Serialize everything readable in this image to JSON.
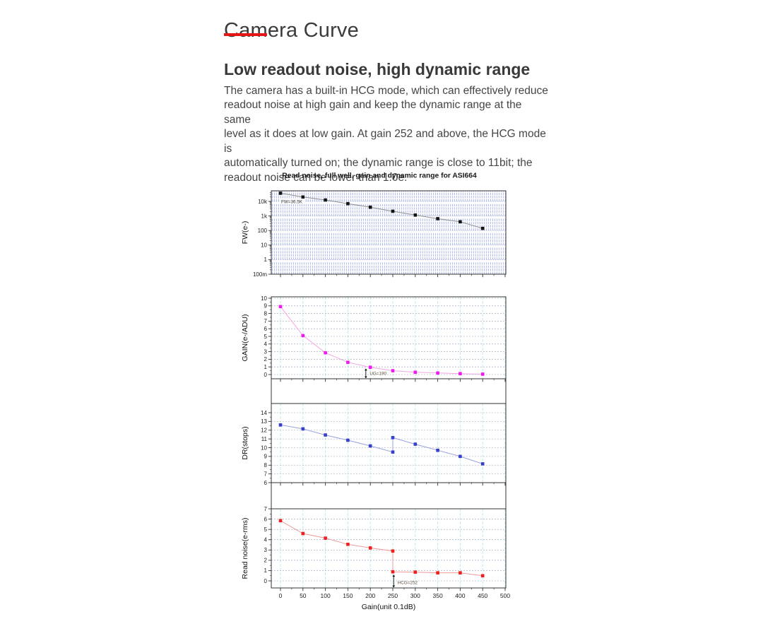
{
  "page": {
    "title": "Camera Curve",
    "accent_color": "#e51616",
    "section_heading": "Low readout noise, high dynamic range",
    "paragraph_lines": [
      "The camera has a built-in HCG mode, which can effectively reduce",
      "readout noise at high gain and keep the dynamic range at the same",
      "level as it does at low gain. At gain 252 and above, the HCG mode is",
      "automatically turned on; the dynamic range is close to 11bit; the",
      "readout noise can be lower than 1.0e."
    ]
  },
  "chart_data": {
    "type": "line",
    "title": "Read noise, full well, gain and dynamic range for ASI664",
    "xlabel": "Gain(unit 0.1dB)",
    "x_ticks": [
      0,
      50,
      100,
      150,
      200,
      250,
      300,
      350,
      400,
      450,
      500
    ],
    "xlim": [
      -20,
      502
    ],
    "grid": true,
    "legend_position": "none",
    "panels": [
      {
        "name": "full-well",
        "ylabel": "FW(e-)",
        "yscale": "log",
        "ylim": [
          0.1,
          50000
        ],
        "y_tick_labels": [
          [
            10000,
            "10k"
          ],
          [
            1000,
            "1k"
          ],
          [
            100,
            "100"
          ],
          [
            10,
            "10"
          ],
          [
            1,
            "1"
          ],
          [
            0.1,
            "100m"
          ]
        ],
        "marker_color": "#141414",
        "line_color": "#8f8f8f",
        "points": [
          [
            0,
            36500
          ],
          [
            50,
            20000
          ],
          [
            100,
            12500
          ],
          [
            150,
            7000
          ],
          [
            200,
            4000
          ],
          [
            250,
            2100
          ],
          [
            300,
            1150
          ],
          [
            350,
            650
          ],
          [
            400,
            400
          ],
          [
            450,
            140
          ]
        ],
        "annotation": {
          "text": "FW=36.5K"
        }
      },
      {
        "name": "gain",
        "ylabel": "GAIN(e-/ADU)",
        "yscale": "linear",
        "ylim": [
          0,
          10
        ],
        "y_tick_step": 1,
        "marker_color": "#ed1bed",
        "line_color": "#f2a6e4",
        "points": [
          [
            0,
            8.9
          ],
          [
            50,
            5.1
          ],
          [
            100,
            2.85
          ],
          [
            150,
            1.6
          ],
          [
            200,
            0.95
          ],
          [
            250,
            0.5
          ],
          [
            300,
            0.3
          ],
          [
            350,
            0.2
          ],
          [
            400,
            0.12
          ],
          [
            450,
            0.05
          ]
        ],
        "annotation": {
          "text": "UG=190",
          "x": 190
        }
      },
      {
        "name": "dynamic-range",
        "ylabel": "DR(stops)",
        "yscale": "linear",
        "ylim": [
          6,
          14
        ],
        "y_tick_step": 1,
        "marker_color": "#3640c8",
        "line_color": "#99a1e0",
        "points": [
          [
            0,
            12.6
          ],
          [
            50,
            12.15
          ],
          [
            100,
            11.45
          ],
          [
            150,
            10.85
          ],
          [
            200,
            10.2
          ],
          [
            250,
            9.5
          ],
          [
            250,
            11.15
          ],
          [
            300,
            10.4
          ],
          [
            350,
            9.7
          ],
          [
            400,
            9.0
          ],
          [
            450,
            8.15
          ]
        ]
      },
      {
        "name": "read-noise",
        "ylabel": "Read noise(e-rms)",
        "yscale": "linear",
        "ylim": [
          0,
          7
        ],
        "y_tick_step": 1,
        "marker_color": "#ed2020",
        "line_color": "#f09a9a",
        "points": [
          [
            0,
            5.85
          ],
          [
            50,
            4.6
          ],
          [
            100,
            4.15
          ],
          [
            150,
            3.55
          ],
          [
            200,
            3.2
          ],
          [
            250,
            2.9
          ],
          [
            250,
            0.88
          ],
          [
            300,
            0.85
          ],
          [
            350,
            0.78
          ],
          [
            400,
            0.78
          ],
          [
            450,
            0.5
          ]
        ],
        "annotation": {
          "text": "HCG=252",
          "x": 252
        }
      }
    ]
  }
}
